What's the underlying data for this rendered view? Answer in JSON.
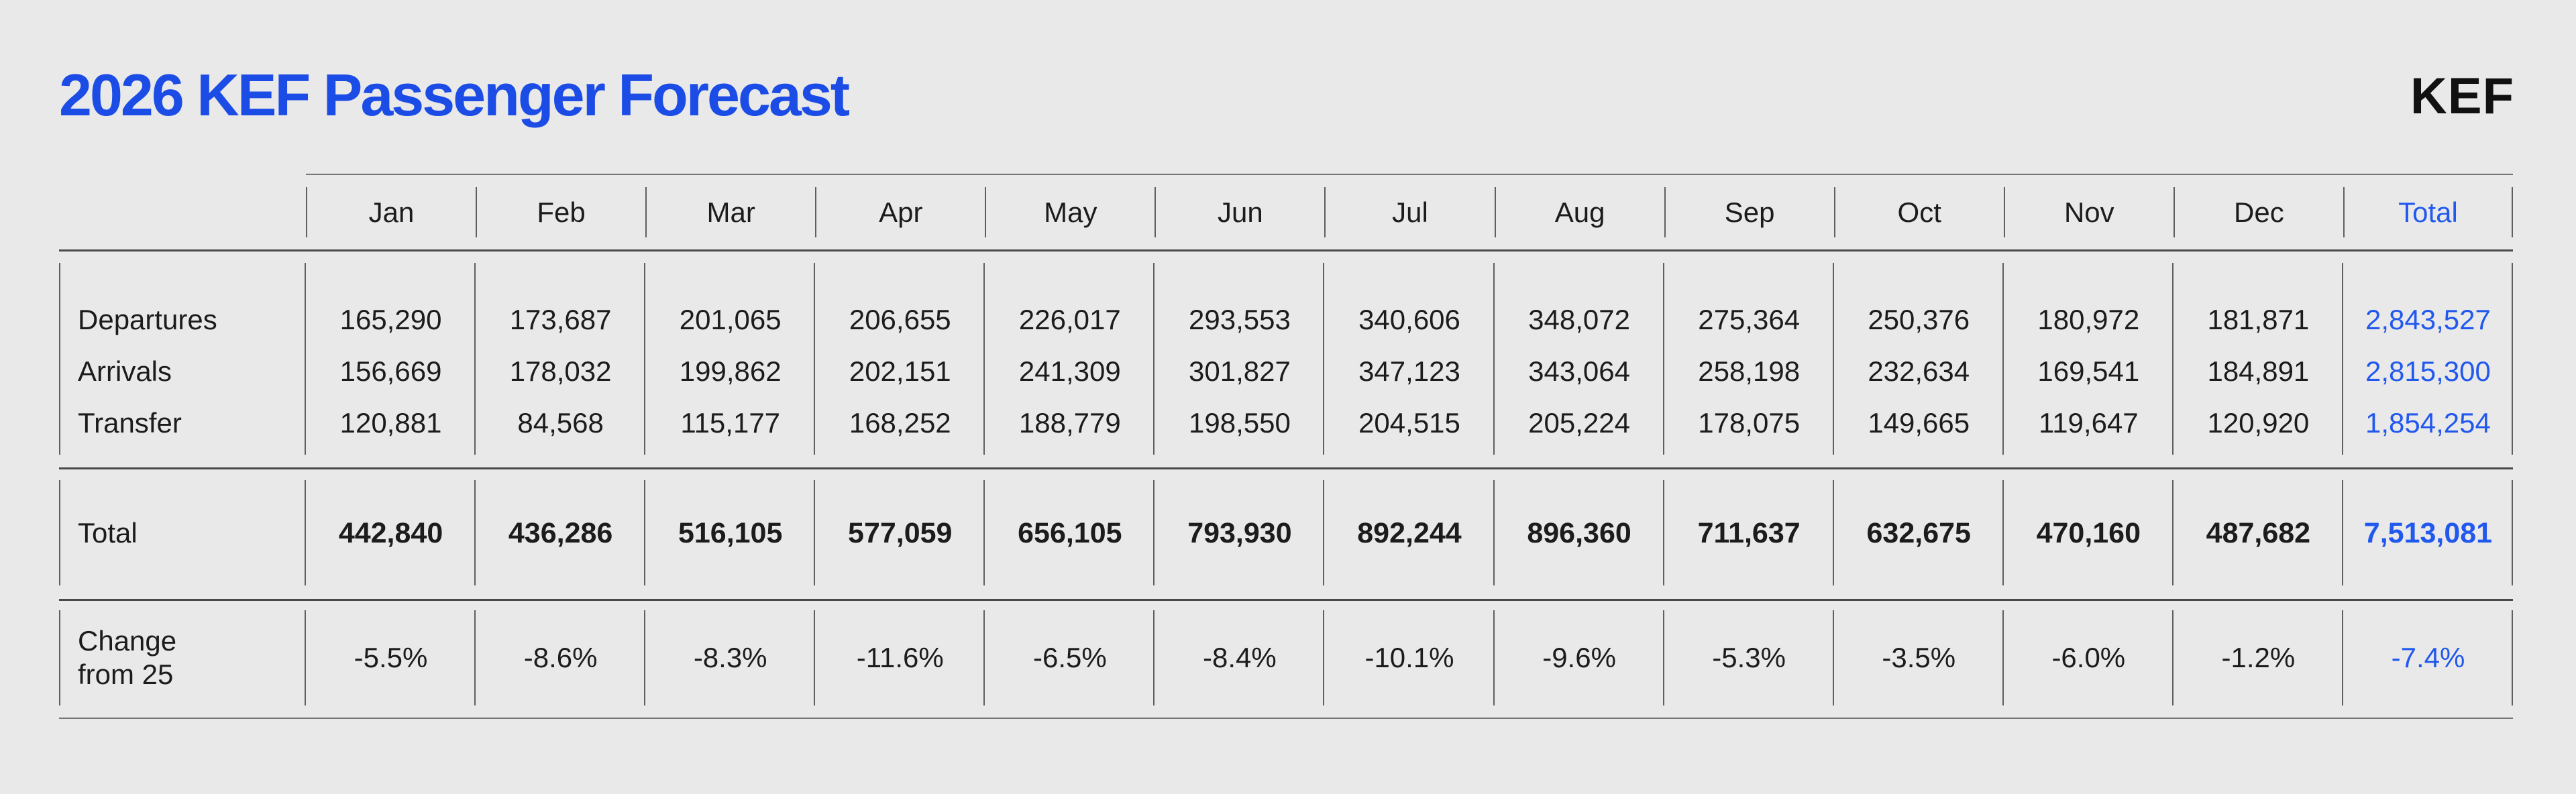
{
  "page": {
    "title": "2026 KEF Passenger Forecast",
    "logo_text": "KEF"
  },
  "colors": {
    "background": "#e9e9e9",
    "title_blue": "#1c4ce6",
    "accent_blue": "#2158ee",
    "text": "#1c1c1c"
  },
  "table": {
    "month_columns": [
      "Jan",
      "Feb",
      "Mar",
      "Apr",
      "May",
      "Jun",
      "Jul",
      "Aug",
      "Sep",
      "Oct",
      "Nov",
      "Dec"
    ],
    "total_column_label": "Total",
    "data_rows": [
      {
        "label": "Departures",
        "values": [
          "165,290",
          "173,687",
          "201,065",
          "206,655",
          "226,017",
          "293,553",
          "340,606",
          "348,072",
          "275,364",
          "250,376",
          "180,972",
          "181,871"
        ],
        "total": "2,843,527"
      },
      {
        "label": "Arrivals",
        "values": [
          "156,669",
          "178,032",
          "199,862",
          "202,151",
          "241,309",
          "301,827",
          "347,123",
          "343,064",
          "258,198",
          "232,634",
          "169,541",
          "184,891"
        ],
        "total": "2,815,300"
      },
      {
        "label": "Transfer",
        "values": [
          "120,881",
          "84,568",
          "115,177",
          "168,252",
          "188,779",
          "198,550",
          "204,515",
          "205,224",
          "178,075",
          "149,665",
          "119,647",
          "120,920"
        ],
        "total": "1,854,254"
      }
    ],
    "total_row": {
      "label": "Total",
      "values": [
        "442,840",
        "436,286",
        "516,105",
        "577,059",
        "656,105",
        "793,930",
        "892,244",
        "896,360",
        "711,637",
        "632,675",
        "470,160",
        "487,682"
      ],
      "total": "7,513,081"
    },
    "change_row": {
      "label_lines": [
        "Change",
        "from 25"
      ],
      "values": [
        "-5.5%",
        "-8.6%",
        "-8.3%",
        "-11.6%",
        "-6.5%",
        "-8.4%",
        "-10.1%",
        "-9.6%",
        "-5.3%",
        "-3.5%",
        "-6.0%",
        "-1.2%"
      ],
      "total": "-7.4%"
    }
  }
}
